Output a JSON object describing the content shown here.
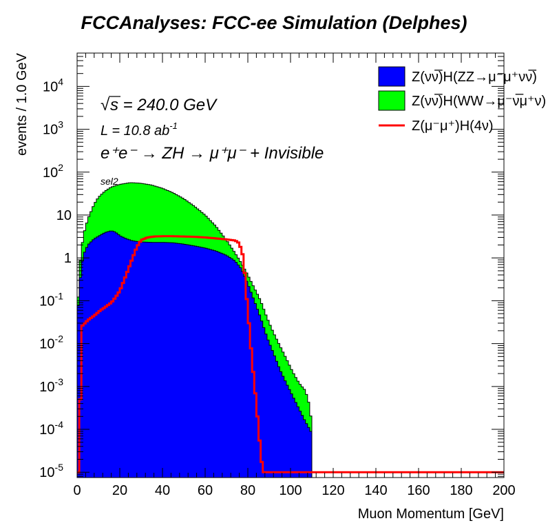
{
  "title": "FCCAnalyses: FCC-ee Simulation (Delphes)",
  "annotations": {
    "sqrt_s": "s = 240.0 GeV",
    "lumi_main": "L = 10.8 ab",
    "lumi_sup": "-1",
    "process": "e⁺e⁻ → ZH → μ⁺μ⁻ + Invisible",
    "selection": "sel2"
  },
  "chart_data": {
    "type": "histogram-stacked",
    "xlabel": "Muon Momentum [GeV]",
    "ylabel": "events / 1.0 GeV",
    "xlim": [
      0,
      200
    ],
    "ylim": [
      7.5e-06,
      60000
    ],
    "yscale": "log",
    "x_ticks": [
      0,
      20,
      40,
      60,
      80,
      100,
      120,
      140,
      160,
      180,
      200
    ],
    "y_ticks": [
      {
        "value": 1e-05,
        "label": "10",
        "exp": "-5"
      },
      {
        "value": 0.0001,
        "label": "10",
        "exp": "-4"
      },
      {
        "value": 0.001,
        "label": "10",
        "exp": "-3"
      },
      {
        "value": 0.01,
        "label": "10",
        "exp": "-2"
      },
      {
        "value": 0.1,
        "label": "10",
        "exp": "-1"
      },
      {
        "value": 1,
        "label": "1",
        "exp": ""
      },
      {
        "value": 10,
        "label": "10",
        "exp": ""
      },
      {
        "value": 100,
        "label": "10",
        "exp": "2"
      },
      {
        "value": 1000,
        "label": "10",
        "exp": "3"
      },
      {
        "value": 10000,
        "label": "10",
        "exp": "4"
      }
    ],
    "series": [
      {
        "name": "Z(νν̅)H(ZZ→μ⁻μ⁺νν̅)",
        "style": "filled",
        "color": "#0000ff",
        "points": [
          [
            0,
            0.03
          ],
          [
            1,
            0.2
          ],
          [
            2,
            0.6
          ],
          [
            3,
            1.2
          ],
          [
            5,
            2.0
          ],
          [
            8,
            2.8
          ],
          [
            10,
            3.2
          ],
          [
            13,
            3.9
          ],
          [
            16,
            4.3
          ],
          [
            18,
            4.0
          ],
          [
            20,
            3.3
          ],
          [
            23,
            2.8
          ],
          [
            26,
            2.5
          ],
          [
            30,
            2.35
          ],
          [
            35,
            2.3
          ],
          [
            40,
            2.3
          ],
          [
            45,
            2.25
          ],
          [
            50,
            2.1
          ],
          [
            55,
            1.9
          ],
          [
            60,
            1.7
          ],
          [
            65,
            1.45
          ],
          [
            70,
            1.15
          ],
          [
            74,
            0.85
          ],
          [
            77,
            0.55
          ],
          [
            80,
            0.25
          ],
          [
            83,
            0.1
          ],
          [
            86,
            0.04
          ],
          [
            89,
            0.014
          ],
          [
            92,
            0.006
          ],
          [
            95,
            0.0025
          ],
          [
            98,
            0.0012
          ],
          [
            101,
            0.0006
          ],
          [
            104,
            0.0003
          ],
          [
            107,
            0.00015
          ],
          [
            109,
            0.0001
          ],
          [
            110,
            8e-05
          ]
        ]
      },
      {
        "name": "Z(νν̅)H(WW→μ⁻ν̅μ⁺ν)",
        "style": "filled",
        "color": "#00ff00",
        "points": [
          [
            0,
            0.03
          ],
          [
            1,
            0.5
          ],
          [
            2,
            1.5
          ],
          [
            3,
            3.5
          ],
          [
            5,
            8
          ],
          [
            8,
            18
          ],
          [
            10,
            26
          ],
          [
            13,
            36
          ],
          [
            16,
            45
          ],
          [
            20,
            52
          ],
          [
            25,
            57
          ],
          [
            30,
            55
          ],
          [
            35,
            50
          ],
          [
            40,
            42
          ],
          [
            45,
            33
          ],
          [
            50,
            24
          ],
          [
            55,
            16
          ],
          [
            60,
            10
          ],
          [
            65,
            5.5
          ],
          [
            70,
            2.6
          ],
          [
            74,
            1.3
          ],
          [
            77,
            0.75
          ],
          [
            80,
            0.4
          ],
          [
            83,
            0.2
          ],
          [
            86,
            0.1
          ],
          [
            89,
            0.04
          ],
          [
            92,
            0.018
          ],
          [
            95,
            0.009
          ],
          [
            98,
            0.0045
          ],
          [
            101,
            0.0022
          ],
          [
            104,
            0.0012
          ],
          [
            107,
            0.0008
          ],
          [
            109,
            0.00035
          ],
          [
            110,
            0.00012
          ]
        ]
      },
      {
        "name": "Z(μ⁻μ⁺)H(4ν)",
        "style": "line",
        "color": "#ff0000",
        "points": [
          [
            0,
            1e-05
          ],
          [
            1,
            1e-05
          ],
          [
            2,
            0.025
          ],
          [
            5,
            0.035
          ],
          [
            8,
            0.045
          ],
          [
            11,
            0.06
          ],
          [
            13,
            0.07
          ],
          [
            16,
            0.09
          ],
          [
            18,
            0.12
          ],
          [
            20,
            0.17
          ],
          [
            22,
            0.3
          ],
          [
            24,
            0.55
          ],
          [
            26,
            1.0
          ],
          [
            28,
            1.8
          ],
          [
            30,
            2.6
          ],
          [
            33,
            3.0
          ],
          [
            36,
            3.15
          ],
          [
            40,
            3.2
          ],
          [
            45,
            3.2
          ],
          [
            50,
            3.15
          ],
          [
            55,
            3.1
          ],
          [
            60,
            3.0
          ],
          [
            65,
            2.85
          ],
          [
            70,
            2.7
          ],
          [
            74,
            2.55
          ],
          [
            76,
            2.2
          ],
          [
            78,
            1.0
          ],
          [
            79,
            0.2
          ],
          [
            80,
            0.06
          ],
          [
            81,
            0.015
          ],
          [
            82,
            0.004
          ],
          [
            83,
            0.0012
          ],
          [
            84,
            0.0004
          ],
          [
            85,
            0.0001
          ],
          [
            86,
            3e-05
          ],
          [
            87,
            1e-05
          ],
          [
            200,
            1e-05
          ]
        ]
      }
    ]
  }
}
